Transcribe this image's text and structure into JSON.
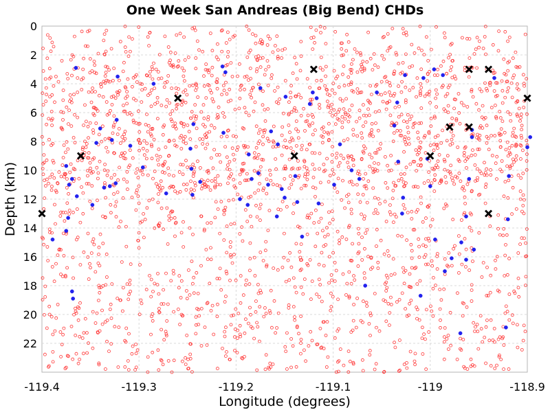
{
  "chart_data": {
    "type": "scatter",
    "title": "One Week San Andreas (Big Bend) CHDs",
    "xlabel": "Longitude (degrees)",
    "ylabel": "Depth (km)",
    "xlim": [
      -119.4,
      -118.9
    ],
    "ylim": [
      0,
      24
    ],
    "y_inverted": true,
    "x_ticks": [
      -119.4,
      -119.3,
      -119.2,
      -119.1,
      -119.0,
      -118.9
    ],
    "x_tick_labels": [
      "-119.4",
      "-119.3",
      "-119.2",
      "-119.1",
      "-119",
      "-118.9"
    ],
    "y_ticks": [
      0,
      2,
      4,
      6,
      8,
      10,
      12,
      14,
      16,
      18,
      20,
      22
    ],
    "y_tick_labels": [
      "0",
      "2",
      "4",
      "6",
      "8",
      "10",
      "12",
      "14",
      "16",
      "18",
      "20",
      "22"
    ],
    "grid": true,
    "legend": "none",
    "series": [
      {
        "marker": "open-circle",
        "color": "#ff3333",
        "approx_count": 2600,
        "note_density": "dense background cloud spanning the full longitude range and depths 0-24 km"
      },
      {
        "marker": "filled-circle",
        "color": "#2222ee",
        "points": [
          [
            -119.365,
            2.9
          ],
          [
            -119.322,
            3.5
          ],
          [
            -119.285,
            4.0
          ],
          [
            -119.214,
            2.8
          ],
          [
            -119.211,
            3.2
          ],
          [
            -119.175,
            4.3
          ],
          [
            -119.149,
            4.9
          ],
          [
            -119.121,
            4.6
          ],
          [
            -119.124,
            5.4
          ],
          [
            -119.117,
            5.0
          ],
          [
            -119.055,
            4.6
          ],
          [
            -119.026,
            3.4
          ],
          [
            -119.007,
            3.6
          ],
          [
            -118.996,
            3.0
          ],
          [
            -118.987,
            3.4
          ],
          [
            -119.034,
            5.3
          ],
          [
            -118.934,
            3.6
          ],
          [
            -119.323,
            6.5
          ],
          [
            -119.244,
            6.8
          ],
          [
            -119.213,
            7.4
          ],
          [
            -119.164,
            7.3
          ],
          [
            -119.157,
            8.2
          ],
          [
            -119.037,
            6.9
          ],
          [
            -118.897,
            7.7
          ],
          [
            -118.9,
            8.4
          ],
          [
            -118.957,
            7.2
          ],
          [
            -118.957,
            7.7
          ],
          [
            -119.34,
            7.1
          ],
          [
            -119.344,
            8.1
          ],
          [
            -119.328,
            7.9
          ],
          [
            -119.309,
            8.3
          ],
          [
            -119.247,
            8.5
          ],
          [
            -119.187,
            8.9
          ],
          [
            -119.093,
            8.2
          ],
          [
            -119.033,
            9.4
          ],
          [
            -119.003,
            9.2
          ],
          [
            -119.375,
            9.7
          ],
          [
            -119.369,
            10.6
          ],
          [
            -119.372,
            11.0
          ],
          [
            -119.364,
            11.8
          ],
          [
            -119.336,
            11.2
          ],
          [
            -119.33,
            11.1
          ],
          [
            -119.324,
            10.9
          ],
          [
            -119.296,
            9.8
          ],
          [
            -119.246,
            9.9
          ],
          [
            -119.237,
            10.8
          ],
          [
            -119.184,
            10.6
          ],
          [
            -119.177,
            10.2
          ],
          [
            -119.167,
            11.0
          ],
          [
            -119.153,
            11.3
          ],
          [
            -119.139,
            10.4
          ],
          [
            -119.15,
            11.9
          ],
          [
            -119.137,
            12.2
          ],
          [
            -119.115,
            12.3
          ],
          [
            -119.099,
            11.0
          ],
          [
            -119.081,
            10.0
          ],
          [
            -119.073,
            10.6
          ],
          [
            -119.028,
            11.9
          ],
          [
            -119.0,
            11.1
          ],
          [
            -118.96,
            10.6
          ],
          [
            -118.919,
            10.4
          ],
          [
            -119.272,
            11.6
          ],
          [
            -119.245,
            11.7
          ],
          [
            -119.196,
            12.0
          ],
          [
            -119.188,
            12.4
          ],
          [
            -119.348,
            12.4
          ],
          [
            -119.373,
            13.3
          ],
          [
            -119.375,
            14.2
          ],
          [
            -119.389,
            14.8
          ],
          [
            -119.158,
            13.2
          ],
          [
            -119.132,
            14.6
          ],
          [
            -119.029,
            13.0
          ],
          [
            -118.963,
            13.2
          ],
          [
            -118.92,
            13.4
          ],
          [
            -118.995,
            14.8
          ],
          [
            -118.968,
            15.0
          ],
          [
            -118.963,
            16.2
          ],
          [
            -118.955,
            15.5
          ],
          [
            -118.978,
            16.1
          ],
          [
            -118.985,
            17.0
          ],
          [
            -119.369,
            18.4
          ],
          [
            -119.368,
            18.9
          ],
          [
            -119.01,
            18.7
          ],
          [
            -118.969,
            21.3
          ],
          [
            -118.922,
            20.9
          ],
          [
            -119.067,
            18.0
          ]
        ]
      },
      {
        "marker": "x",
        "color": "#000000",
        "points": [
          [
            -119.4,
            13.0
          ],
          [
            -119.36,
            9.0
          ],
          [
            -119.26,
            5.0
          ],
          [
            -119.14,
            9.0
          ],
          [
            -119.12,
            3.0
          ],
          [
            -119.0,
            9.0
          ],
          [
            -118.98,
            7.0
          ],
          [
            -118.96,
            7.0
          ],
          [
            -118.96,
            3.0
          ],
          [
            -118.94,
            3.0
          ],
          [
            -118.94,
            13.0
          ],
          [
            -118.9,
            5.0
          ]
        ]
      }
    ]
  }
}
